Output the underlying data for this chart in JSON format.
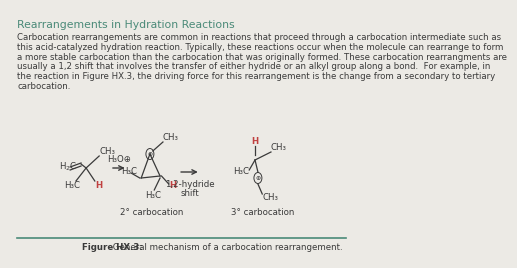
{
  "bg_color": "#eceae5",
  "title": "Rearrangements in Hydration Reactions",
  "title_color": "#4a8a78",
  "title_fontsize": 7.8,
  "body_lines": [
    "Carbocation rearrangements are common in reactions that proceed through a carbocation intermediate such as",
    "this acid-catalyzed hydration reaction. Typically, these reactions occur when the molecule can rearrange to form",
    "a more stable carbocation than the carbocation that was originally formed. These carbocation rearrangments are",
    "usually a 1,2 shift that involves the transfer of either hydride or an alkyl group along a bond.  For example, in",
    "the reaction in Figure HX.3, the driving force for this rearrangement is the change from a secondary to tertiary",
    "carbocation."
  ],
  "body_fontsize": 6.2,
  "body_color": "#3a3a3a",
  "caption_bold": "Figure HX.3:",
  "caption_rest": " General mechanism of a carbocation rearrangement.",
  "caption_fontsize": 6.2,
  "label_2deg": "2° carbocation",
  "label_3deg": "3° carbocation",
  "label_shift_1": "1,2-hydride",
  "label_shift_2": "shift",
  "label_fontsize": 6.2,
  "arrow_color": "#3a3a3a",
  "line_color": "#4a8a78",
  "struct_color": "#3a3a3a",
  "h_color": "#c04040",
  "struct_fontsize": 6.2
}
